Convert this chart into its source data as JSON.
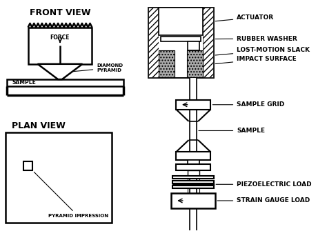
{
  "bg_color": "#ffffff",
  "line_color": "#000000",
  "labels": {
    "front_view": "FRONT VIEW",
    "plan_view": "PLAN VIEW",
    "force": "FORCE",
    "sample_left": "SAMPLE",
    "diamond_pyramid": "DIAMOND\nPYRAMID",
    "pyramid_impression": "PYRAMID IMPRESSION",
    "actuator": "ACTUATOR",
    "rubber_washer": "RUBBER WASHER",
    "lost_motion": "LOST-MOTION SLACK",
    "impact_surface": "IMPACT SURFACE",
    "sample_grid": "SAMPLE GRID",
    "sample_right": "SAMPLE",
    "piezoelectric": "PIEZOELECTRIC LOAD",
    "strain_gauge": "STRAIN GAUGE LOAD"
  }
}
